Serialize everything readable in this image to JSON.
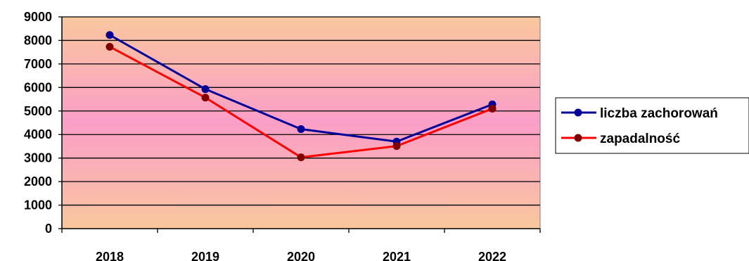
{
  "chart_data": {
    "type": "line",
    "categories": [
      "2018",
      "2019",
      "2020",
      "2021",
      "2022"
    ],
    "series": [
      {
        "name": "liczba zachorowań",
        "values": [
          8230,
          5930,
          4230,
          3700,
          5280
        ],
        "color": "#000099",
        "marker_color": "#000099"
      },
      {
        "name": "zapadalność",
        "values": [
          7730,
          5570,
          3030,
          3510,
          5100
        ],
        "color": "#ff0000",
        "marker_color": "#800000"
      }
    ],
    "ylim": [
      0,
      9000
    ],
    "yticks": [
      0,
      1000,
      2000,
      3000,
      4000,
      5000,
      6000,
      7000,
      8000,
      9000
    ],
    "grid": true,
    "legend_position": "right",
    "background_gradient": [
      "#f9c79d",
      "#fb9ec8",
      "#f9c79d"
    ]
  }
}
